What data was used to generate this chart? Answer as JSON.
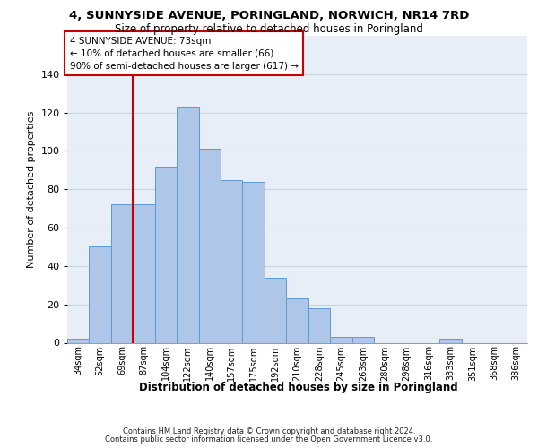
{
  "title": "4, SUNNYSIDE AVENUE, PORINGLAND, NORWICH, NR14 7RD",
  "subtitle": "Size of property relative to detached houses in Poringland",
  "xlabel_bottom": "Distribution of detached houses by size in Poringland",
  "ylabel": "Number of detached properties",
  "bar_labels": [
    "34sqm",
    "52sqm",
    "69sqm",
    "87sqm",
    "104sqm",
    "122sqm",
    "140sqm",
    "157sqm",
    "175sqm",
    "192sqm",
    "210sqm",
    "228sqm",
    "245sqm",
    "263sqm",
    "280sqm",
    "298sqm",
    "316sqm",
    "333sqm",
    "351sqm",
    "368sqm",
    "386sqm"
  ],
  "bar_values": [
    2,
    50,
    72,
    72,
    92,
    123,
    101,
    85,
    84,
    34,
    23,
    18,
    3,
    3,
    0,
    0,
    0,
    2,
    0,
    0,
    0
  ],
  "bar_color": "#aec6e8",
  "bar_edge_color": "#5b9bd5",
  "grid_color": "#c8d4e4",
  "background_color": "#e8eef8",
  "vline_x": 2.5,
  "vline_color": "#cc0000",
  "annotation_line1": "4 SUNNYSIDE AVENUE: 73sqm",
  "annotation_line2": "← 10% of detached houses are smaller (66)",
  "annotation_line3": "90% of semi-detached houses are larger (617) →",
  "annotation_box_color": "white",
  "annotation_box_edge": "#cc0000",
  "footer1": "Contains HM Land Registry data © Crown copyright and database right 2024.",
  "footer2": "Contains public sector information licensed under the Open Government Licence v3.0.",
  "ylim_max": 160,
  "yticks": [
    0,
    20,
    40,
    60,
    80,
    100,
    120,
    140
  ]
}
